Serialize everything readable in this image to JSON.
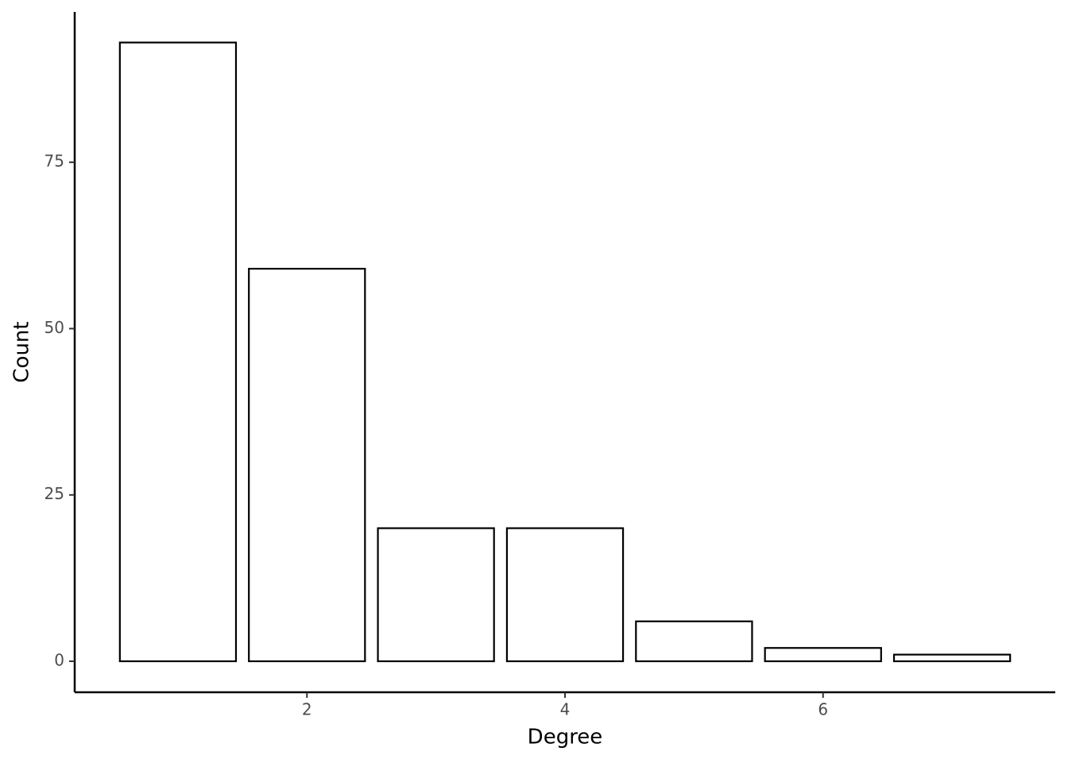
{
  "chart_data": {
    "type": "bar",
    "x_label": "Degree",
    "y_label": "Count",
    "x": [
      1,
      2,
      3,
      4,
      5,
      6,
      7
    ],
    "values": [
      93,
      59,
      20,
      20,
      6,
      2,
      1
    ],
    "color": "#ffffff",
    "edge_color": "#000000",
    "xlim": [
      0.2,
      7.8
    ],
    "xticks": [
      2,
      4,
      6
    ],
    "ylim": [
      -4.66,
      97.6
    ],
    "yticks": [
      0,
      25,
      50,
      75
    ],
    "grid": false
  }
}
